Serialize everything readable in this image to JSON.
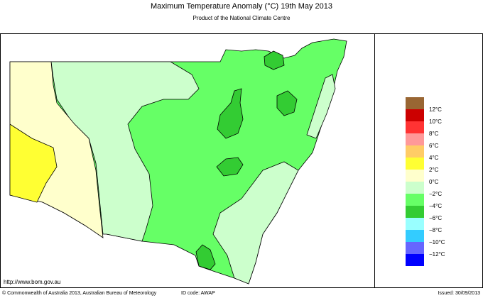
{
  "header": {
    "title": "Maximum Temperature Anomaly (°C)  19th May 2013",
    "subtitle": "Product of the National Climate Centre"
  },
  "legend": {
    "labels": [
      "12°C",
      "10°C",
      "8°C",
      "6°C",
      "4°C",
      "2°C",
      "0°C",
      "−2°C",
      "−4°C",
      "−6°C",
      "−8°C",
      "−10°C",
      "−12°C"
    ],
    "colors": [
      "#996633",
      "#cc0000",
      "#ff3333",
      "#ff9999",
      "#ffcc66",
      "#ffff33",
      "#ffffcc",
      "#ccffcc",
      "#66ff66",
      "#33cc33",
      "#99ffff",
      "#33ccff",
      "#6666ff",
      "#0000ff"
    ]
  },
  "footer": {
    "url": "http://www.bom.gov.au",
    "copyright": "© Commonwealth of Australia 2013, Australian Bureau of Meteorology",
    "id_code": "ID code: AWAP",
    "issued": "Issued: 30/09/2013"
  }
}
